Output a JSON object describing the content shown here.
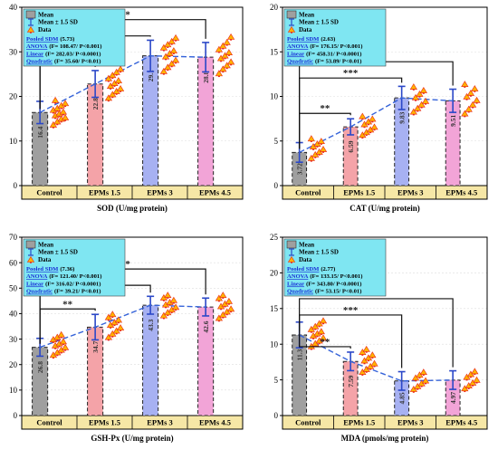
{
  "colors": {
    "legend_bg": "#7fe6f2",
    "category_band": "#f6e7a6",
    "trend_line": "#3563d9",
    "error_bar": "#2b48c8",
    "dots_fill": "#ffb300",
    "dots_accent": "#e8271c",
    "sig_text": "#222222",
    "bar_fills": [
      "#9f9f9f",
      "#f4a3a8",
      "#a7b1f2",
      "#f2a4d7"
    ]
  },
  "legend_labels": {
    "mean": "Mean",
    "sd": "Mean ± 1.5 SD",
    "data": "Data"
  },
  "chart_data": [
    {
      "type": "bar",
      "categories": [
        "Control",
        "EPMs 1.5",
        "EPMs 3",
        "EPMs 4.5"
      ],
      "values": [
        16.4,
        22.8,
        29.1,
        28.8
      ],
      "value_labels": [
        "16.4",
        "22.8",
        "29.1",
        "28.8"
      ],
      "errors": [
        2.5,
        3.0,
        3.5,
        3.3
      ],
      "dots": [
        [
          13.5,
          14.2,
          14.8,
          15.1,
          15.6,
          16.0,
          16.4,
          16.8,
          17.2,
          17.8,
          18.3,
          19.0
        ],
        [
          19.5,
          20.3,
          21.0,
          21.6,
          22.2,
          22.8,
          23.4,
          23.9,
          24.6,
          25.3,
          26.0
        ],
        [
          25.5,
          26.4,
          27.2,
          28.0,
          28.8,
          29.5,
          30.1,
          30.8,
          31.5,
          32.2,
          33.0
        ],
        [
          25.0,
          26.0,
          26.8,
          27.6,
          28.4,
          29.0,
          29.7,
          30.4,
          31.2,
          32.0,
          33.2
        ]
      ],
      "xlabel": "SOD (U/mg protein)",
      "ylim": [
        0,
        40
      ],
      "yticks": [
        0,
        10,
        20,
        30,
        40
      ],
      "ytick_labels": [
        "0",
        "10",
        "20",
        "30",
        "40"
      ],
      "significance": [
        {
          "from": 0,
          "to": 1,
          "label": "**"
        },
        {
          "from": 0,
          "to": 2,
          "label": "***"
        },
        {
          "from": 0,
          "to": 3,
          "label": "***"
        }
      ],
      "stats": [
        {
          "key": "Pooled SDM",
          "value": "(5.73)"
        },
        {
          "key": "ANOVA",
          "value": "(F= 108.47/ P<0.001)"
        },
        {
          "key": "Linear",
          "value": "(F= 282.03/ P<0.0001)"
        },
        {
          "key": "Quadratic",
          "value": "(F= 35.60/ P<0.01)"
        }
      ]
    },
    {
      "type": "bar",
      "categories": [
        "Control",
        "EPMs 1.5",
        "EPMs 3",
        "EPMs 4.5"
      ],
      "values": [
        3.72,
        6.59,
        9.83,
        9.51
      ],
      "value_labels": [
        "3.72",
        "6.59",
        "9.83",
        "9.51"
      ],
      "errors": [
        1.1,
        0.9,
        1.3,
        1.3
      ],
      "dots": [
        [
          3.0,
          3.4,
          3.7,
          4.0,
          4.3,
          4.6,
          4.9,
          5.2
        ],
        [
          5.6,
          5.9,
          6.2,
          6.5,
          6.8,
          7.1,
          7.4,
          7.7
        ],
        [
          8.2,
          8.6,
          9.0,
          9.4,
          9.8,
          10.2,
          10.6,
          11.0
        ],
        [
          8.0,
          8.5,
          9.0,
          9.5,
          9.9,
          10.3,
          10.8,
          11.3
        ]
      ],
      "xlabel": "CAT (U/mg protein)",
      "ylim": [
        0,
        20
      ],
      "yticks": [
        0,
        5,
        10,
        15,
        20
      ],
      "ytick_labels": [
        "0",
        "5",
        "10",
        "15",
        "20"
      ],
      "significance": [
        {
          "from": 0,
          "to": 1,
          "label": "**"
        },
        {
          "from": 0,
          "to": 2,
          "label": "***"
        },
        {
          "from": 0,
          "to": 3,
          "label": "***"
        }
      ],
      "stats": [
        {
          "key": "Pooled SDM",
          "value": "(2.63)"
        },
        {
          "key": "ANOVA",
          "value": "(F= 176.15/ P<0.001)"
        },
        {
          "key": "Linear",
          "value": "(F= 458.31/ P<0.0001)"
        },
        {
          "key": "Quadratic",
          "value": "(F= 53.89/ P<0.01)"
        }
      ]
    },
    {
      "type": "bar",
      "categories": [
        "Control",
        "EPMs 1.5",
        "EPMs 3",
        "EPMs 4.5"
      ],
      "values": [
        26.8,
        34.7,
        43.3,
        42.6
      ],
      "value_labels": [
        "26.8",
        "34.7",
        "43.3",
        "42.6"
      ],
      "errors": [
        3.5,
        5.0,
        3.5,
        3.5
      ],
      "dots": [
        [
          23.5,
          24.5,
          25.5,
          26.5,
          27.2,
          28.0,
          28.8,
          29.6,
          30.5,
          31.5
        ],
        [
          30.5,
          31.8,
          33.0,
          34.2,
          35.3,
          36.3,
          37.3,
          38.3,
          39.5
        ],
        [
          39.0,
          40.2,
          41.3,
          42.3,
          43.3,
          44.2,
          45.0,
          46.0,
          47.0
        ],
        [
          38.0,
          39.3,
          40.5,
          41.6,
          42.6,
          43.6,
          44.6,
          45.8,
          47.0
        ]
      ],
      "xlabel": "GSH-Px  (U/mg protein)",
      "ylim": [
        0,
        70
      ],
      "yticks": [
        0,
        10,
        20,
        30,
        40,
        50,
        60,
        70
      ],
      "ytick_labels": [
        "0",
        "10",
        "20",
        "30",
        "40",
        "50",
        "60",
        "70"
      ],
      "significance": [
        {
          "from": 0,
          "to": 1,
          "label": "**"
        },
        {
          "from": 0,
          "to": 2,
          "label": "***"
        },
        {
          "from": 0,
          "to": 3,
          "label": "***"
        }
      ],
      "stats": [
        {
          "key": "Pooled SDM",
          "value": "(7.36)"
        },
        {
          "key": "ANOVA",
          "value": "(F= 121.40/ P<0.001)"
        },
        {
          "key": "Linear",
          "value": "(F= 316.02/ P<0.0001)"
        },
        {
          "key": "Quadratic",
          "value": "(F= 39.21/ P<0.01)"
        }
      ]
    },
    {
      "type": "bar",
      "categories": [
        "Control",
        "EPMs 1.5",
        "EPMs 3",
        "EPMs 4.5"
      ],
      "values": [
        11.3,
        7.59,
        4.85,
        4.97
      ],
      "value_labels": [
        "11.3",
        "7.59",
        "4.85",
        "4.97"
      ],
      "errors": [
        1.8,
        1.3,
        1.3,
        1.3
      ],
      "dots": [
        [
          9.6,
          10.0,
          10.4,
          10.8,
          11.1,
          11.4,
          11.7,
          12.0,
          12.4,
          12.8,
          13.2
        ],
        [
          6.0,
          6.4,
          6.8,
          7.2,
          7.6,
          8.0,
          8.4,
          8.8,
          9.2
        ],
        [
          3.6,
          4.0,
          4.4,
          4.8,
          5.2,
          5.6,
          6.0
        ],
        [
          3.7,
          4.1,
          4.5,
          4.9,
          5.3,
          5.7,
          6.1
        ]
      ],
      "xlabel": "MDA (pmols/mg protein)",
      "ylim": [
        0,
        25
      ],
      "yticks": [
        0,
        5,
        10,
        15,
        20,
        25
      ],
      "ytick_labels": [
        "0",
        "5",
        "10",
        "15",
        "20",
        "25"
      ],
      "significance": [
        {
          "from": 0,
          "to": 1,
          "label": "**"
        },
        {
          "from": 0,
          "to": 2,
          "label": "***"
        },
        {
          "from": 0,
          "to": 3,
          "label": "***"
        }
      ],
      "stats": [
        {
          "key": "Pooled SDM",
          "value": "(2.77)"
        },
        {
          "key": "ANOVA",
          "value": "(F= 133.15/ P<0.001)"
        },
        {
          "key": "Linear",
          "value": "(F= 343.80/ P<0.0001)"
        },
        {
          "key": "Quadratic",
          "value": "(F= 53.15/ P<0.01)"
        }
      ]
    }
  ]
}
